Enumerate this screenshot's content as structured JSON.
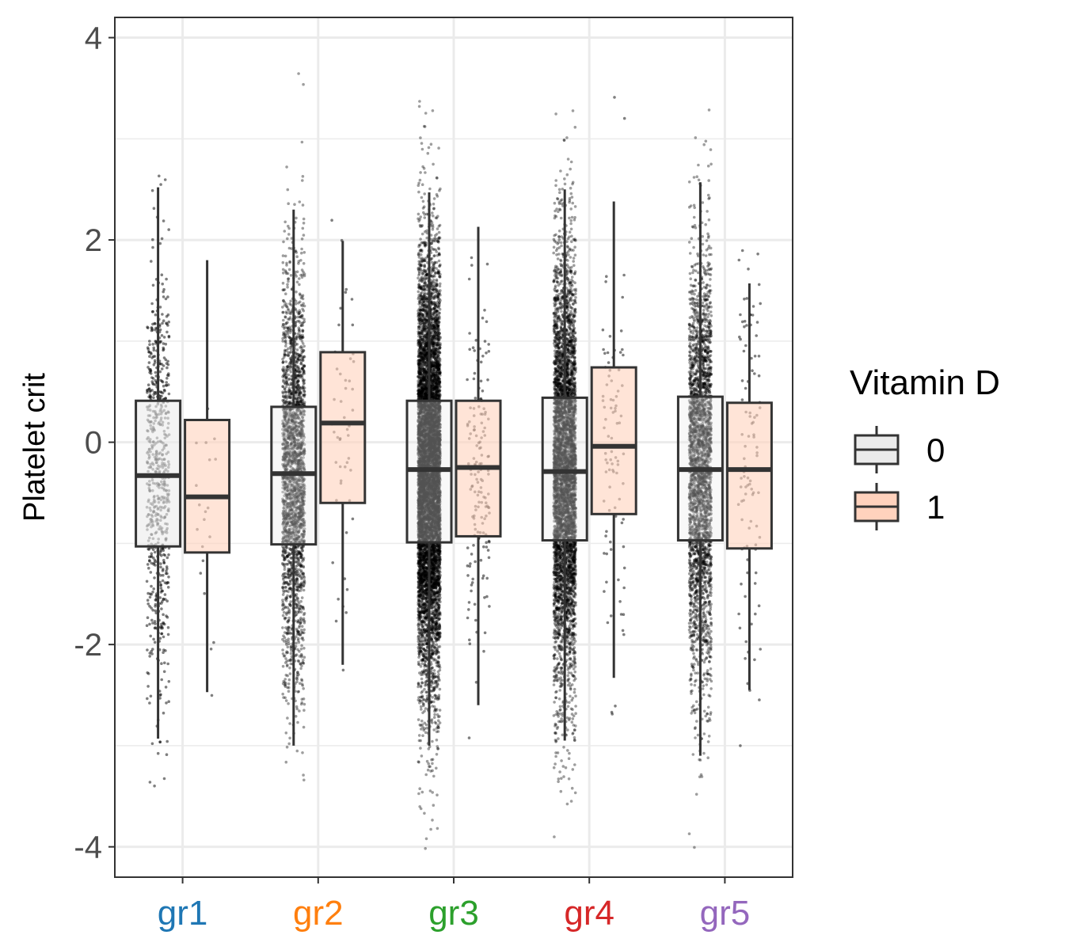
{
  "chart_data": {
    "type": "boxplot",
    "title": "",
    "xlabel": "",
    "ylabel": "Platelet crit",
    "ylim": [
      -4.3,
      4.2
    ],
    "yticks": [
      -4,
      -2,
      0,
      2,
      4
    ],
    "ytick_labels": [
      "-4",
      "-2",
      "0",
      "2",
      "4"
    ],
    "grid": true,
    "legend": {
      "title": "Vitamin D",
      "placement": "right"
    },
    "categories": [
      "gr1",
      "gr2",
      "gr3",
      "gr4",
      "gr5"
    ],
    "category_colors": [
      "#1f77b4",
      "#ff7f0e",
      "#2ca02c",
      "#d62728",
      "#9467bd"
    ],
    "series": [
      {
        "name": "0",
        "fill": "#ebebeb",
        "boxes": [
          {
            "category": "gr1",
            "min": -2.93,
            "q1": -1.03,
            "median": -0.33,
            "q3": 0.41,
            "max": 2.52,
            "points": 700
          },
          {
            "category": "gr2",
            "min": -3.0,
            "q1": -1.01,
            "median": -0.31,
            "q3": 0.35,
            "max": 2.3,
            "points": 2500
          },
          {
            "category": "gr3",
            "min": -3.0,
            "q1": -0.99,
            "median": -0.27,
            "q3": 0.41,
            "max": 2.47,
            "points": 8000
          },
          {
            "category": "gr4",
            "min": -2.95,
            "q1": -0.97,
            "median": -0.29,
            "q3": 0.44,
            "max": 2.5,
            "points": 5000
          },
          {
            "category": "gr5",
            "min": -3.1,
            "q1": -0.97,
            "median": -0.27,
            "q3": 0.45,
            "max": 2.57,
            "points": 3000
          }
        ]
      },
      {
        "name": "1",
        "fill": "#ffd2bd",
        "boxes": [
          {
            "category": "gr1",
            "min": -2.47,
            "q1": -1.09,
            "median": -0.54,
            "q3": 0.22,
            "max": 1.8,
            "points": 20
          },
          {
            "category": "gr2",
            "min": -2.2,
            "q1": -0.6,
            "median": 0.19,
            "q3": 0.89,
            "max": 1.99,
            "points": 50
          },
          {
            "category": "gr3",
            "min": -2.6,
            "q1": -0.93,
            "median": -0.25,
            "q3": 0.41,
            "max": 2.13,
            "points": 160
          },
          {
            "category": "gr4",
            "min": -2.33,
            "q1": -0.71,
            "median": -0.04,
            "q3": 0.74,
            "max": 2.38,
            "points": 90
          },
          {
            "category": "gr5",
            "min": -2.45,
            "q1": -1.05,
            "median": -0.27,
            "q3": 0.39,
            "max": 1.57,
            "points": 100
          }
        ]
      }
    ]
  }
}
